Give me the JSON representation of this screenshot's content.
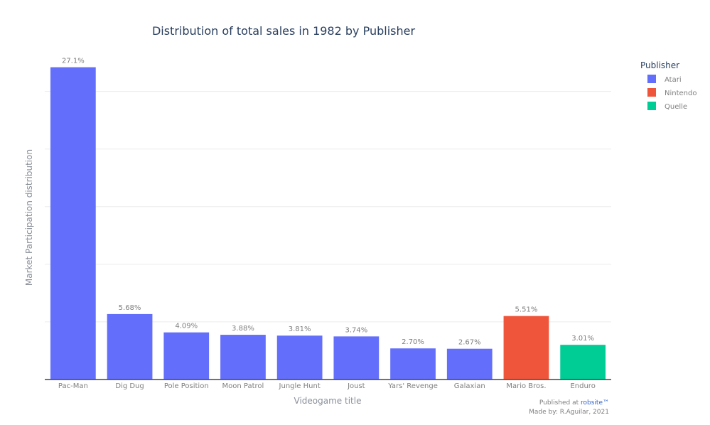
{
  "chart_data": {
    "type": "bar",
    "title": "Distribution of total sales in 1982 by Publisher",
    "xlabel": "Videogame title",
    "ylabel": "Market Participation distribution",
    "ylim": [
      0,
      0.28
    ],
    "grid": true,
    "legend_position": "top-right",
    "legend_title": "Publisher",
    "categories": [
      "Pac-Man",
      "Dig Dug",
      "Pole Position",
      "Moon Patrol",
      "Jungle Hunt",
      "Joust",
      "Yars' Revenge",
      "Galaxian",
      "Mario Bros.",
      "Enduro"
    ],
    "values": [
      0.271,
      0.0568,
      0.0409,
      0.0388,
      0.0381,
      0.0374,
      0.027,
      0.0267,
      0.0551,
      0.0301
    ],
    "labels": [
      "27.1%",
      "5.68%",
      "4.09%",
      "3.88%",
      "3.81%",
      "3.74%",
      "2.70%",
      "2.67%",
      "5.51%",
      "3.01%"
    ],
    "bar_publisher": [
      "Atari",
      "Atari",
      "Atari",
      "Atari",
      "Atari",
      "Atari",
      "Atari",
      "Atari",
      "Nintendo",
      "Quelle"
    ],
    "series": [
      {
        "name": "Atari",
        "color": "#636efa"
      },
      {
        "name": "Nintendo",
        "color": "#ef553b"
      },
      {
        "name": "Quelle",
        "color": "#00cc96"
      }
    ]
  },
  "footer": {
    "published_prefix": "Published at ",
    "published_link": "robsite™",
    "made_by": "Made by: R.Aguilar, 2021"
  }
}
